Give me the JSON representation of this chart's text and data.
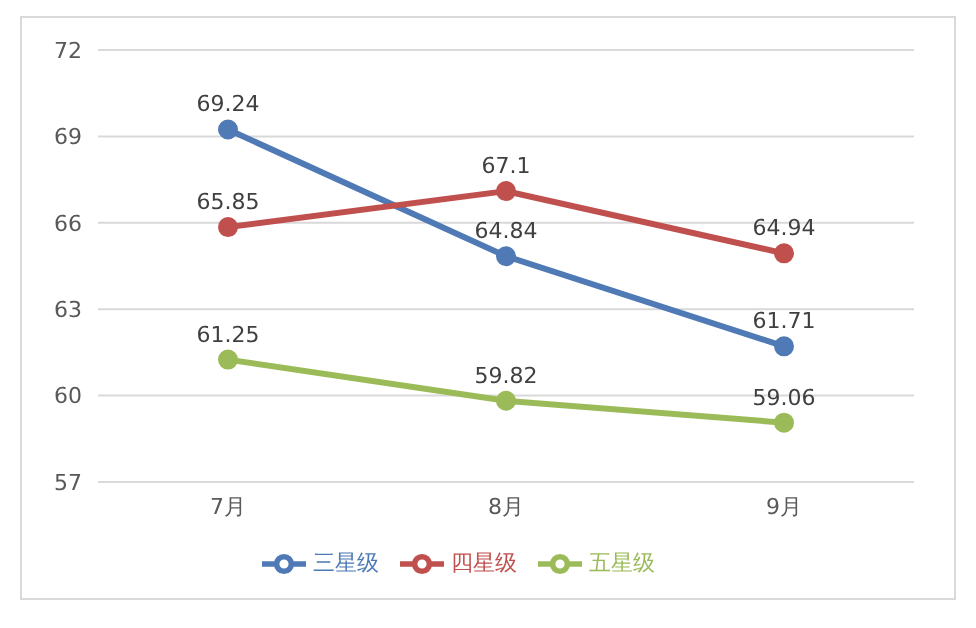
{
  "chart_data": {
    "type": "line",
    "categories": [
      "7月",
      "8月",
      "9月"
    ],
    "series": [
      {
        "name": "三星级",
        "color": "#4f7ab5",
        "values": [
          69.24,
          64.84,
          61.71
        ]
      },
      {
        "name": "四星级",
        "color": "#c0504d",
        "values": [
          65.85,
          67.1,
          64.94
        ]
      },
      {
        "name": "五星级",
        "color": "#9bbb59",
        "values": [
          61.25,
          59.82,
          59.06
        ]
      }
    ],
    "ylim": [
      57,
      72
    ],
    "yticks": [
      57,
      60,
      63,
      66,
      69,
      72
    ],
    "grid": "y",
    "legend": "bottom",
    "marker": "circle",
    "line_style": "solid",
    "data_labels": true
  }
}
